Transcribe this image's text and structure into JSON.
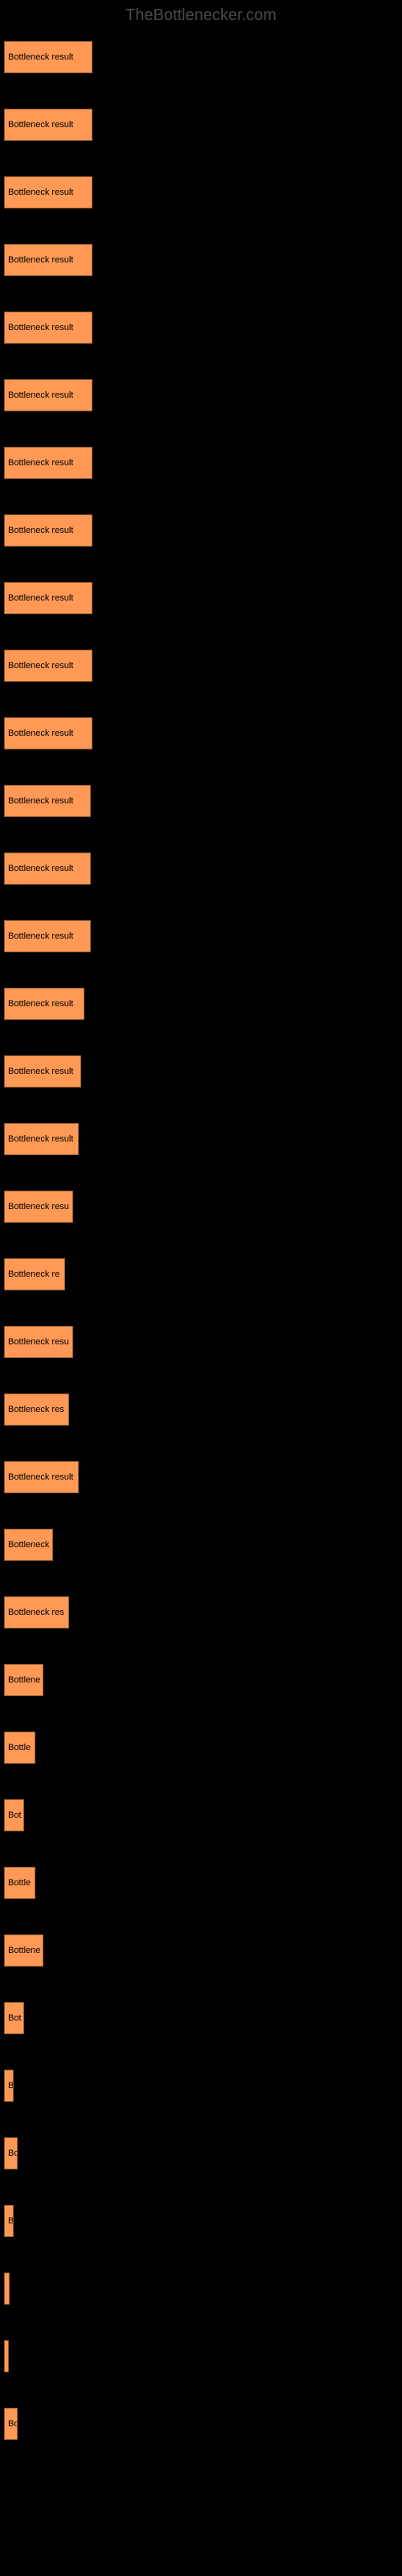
{
  "watermark": "TheBottlenecker.com",
  "chart": {
    "type": "bar",
    "background_color": "#000000",
    "bar_color": "#ff9955",
    "bar_border_color": "#8a5a2a",
    "text_color": "#000000",
    "link_color": "#000000",
    "max_width_percent": 22.5,
    "bars": [
      {
        "link": "",
        "label": "Bottleneck result",
        "width": 22.5
      },
      {
        "link": "",
        "label": "Bottleneck result",
        "width": 22.5
      },
      {
        "link": "",
        "label": "Bottleneck result",
        "width": 22.5
      },
      {
        "link": "",
        "label": "Bottleneck result",
        "width": 22.5
      },
      {
        "link": "",
        "label": "Bottleneck result",
        "width": 22.5
      },
      {
        "link": "",
        "label": "Bottleneck result",
        "width": 22.5
      },
      {
        "link": "",
        "label": "Bottleneck result",
        "width": 22.5
      },
      {
        "link": "",
        "label": "Bottleneck result",
        "width": 22.5
      },
      {
        "link": "",
        "label": "Bottleneck result",
        "width": 22.5
      },
      {
        "link": "",
        "label": "Bottleneck result",
        "width": 22.5
      },
      {
        "link": "",
        "label": "Bottleneck result",
        "width": 22.5
      },
      {
        "link": "",
        "label": "Bottleneck result",
        "width": 22.0
      },
      {
        "link": "",
        "label": "Bottleneck result",
        "width": 22.0
      },
      {
        "link": "",
        "label": "Bottleneck result",
        "width": 22.0
      },
      {
        "link": "",
        "label": "Bottleneck result",
        "width": 20.5
      },
      {
        "link": "",
        "label": "Bottleneck result",
        "width": 19.5
      },
      {
        "link": "",
        "label": "Bottleneck result",
        "width": 19.0
      },
      {
        "link": "",
        "label": "Bottleneck resu",
        "width": 17.5
      },
      {
        "link": "",
        "label": "Bottleneck re",
        "width": 15.5
      },
      {
        "link": "",
        "label": "Bottleneck resu",
        "width": 17.5
      },
      {
        "link": "",
        "label": "Bottleneck res",
        "width": 16.5
      },
      {
        "link": "",
        "label": "Bottleneck result",
        "width": 19.0
      },
      {
        "link": "",
        "label": "Bottleneck",
        "width": 12.5
      },
      {
        "link": "",
        "label": "Bottleneck res",
        "width": 16.5
      },
      {
        "link": "",
        "label": "Bottlene",
        "width": 10.0
      },
      {
        "link": "",
        "label": "Bottle",
        "width": 8.0
      },
      {
        "link": "",
        "label": "Bot",
        "width": 5.0
      },
      {
        "link": "",
        "label": "Bottle",
        "width": 8.0
      },
      {
        "link": "",
        "label": "Bottlene",
        "width": 10.0
      },
      {
        "link": "",
        "label": "Bot",
        "width": 5.0
      },
      {
        "link": "",
        "label": "B",
        "width": 2.5
      },
      {
        "link": "",
        "label": "Bo",
        "width": 3.5
      },
      {
        "link": "",
        "label": "B",
        "width": 2.5
      },
      {
        "link": "",
        "label": "",
        "width": 1.5
      },
      {
        "link": "",
        "label": "",
        "width": 0.8
      },
      {
        "link": "",
        "label": "Bo",
        "width": 3.5
      }
    ]
  }
}
